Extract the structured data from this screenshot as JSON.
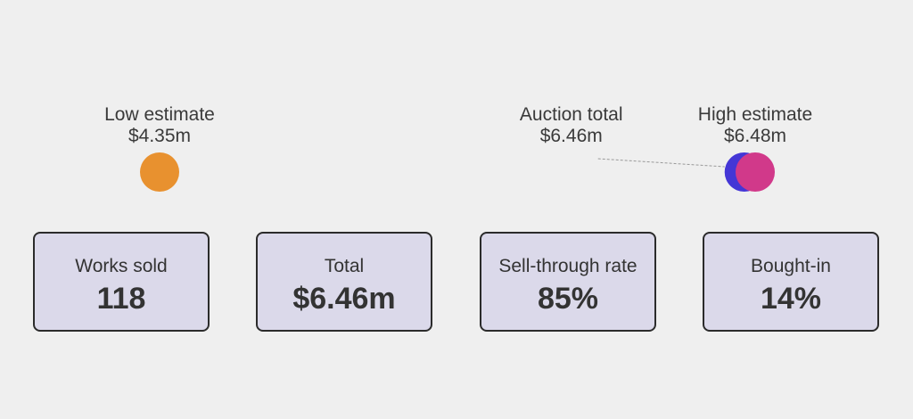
{
  "chart_data": {
    "type": "range",
    "unit": "$m",
    "low_estimate": {
      "label": "Low estimate",
      "value": 4.35,
      "text": "$4.35m"
    },
    "high_estimate": {
      "label": "High estimate",
      "value": 6.48,
      "text": "$6.48m"
    },
    "auction_total": {
      "label": "Auction total",
      "value": 6.46,
      "text": "$6.46m"
    },
    "colors": {
      "low": "#e8912f",
      "high": "#d1398a",
      "total": "#4436d6"
    }
  },
  "stats": [
    {
      "label": "Works sold",
      "value": "118"
    },
    {
      "label": "Total",
      "value": "$6.46m"
    },
    {
      "label": "Sell-through rate",
      "value": "85%"
    },
    {
      "label": "Bought-in",
      "value": "14%"
    }
  ]
}
